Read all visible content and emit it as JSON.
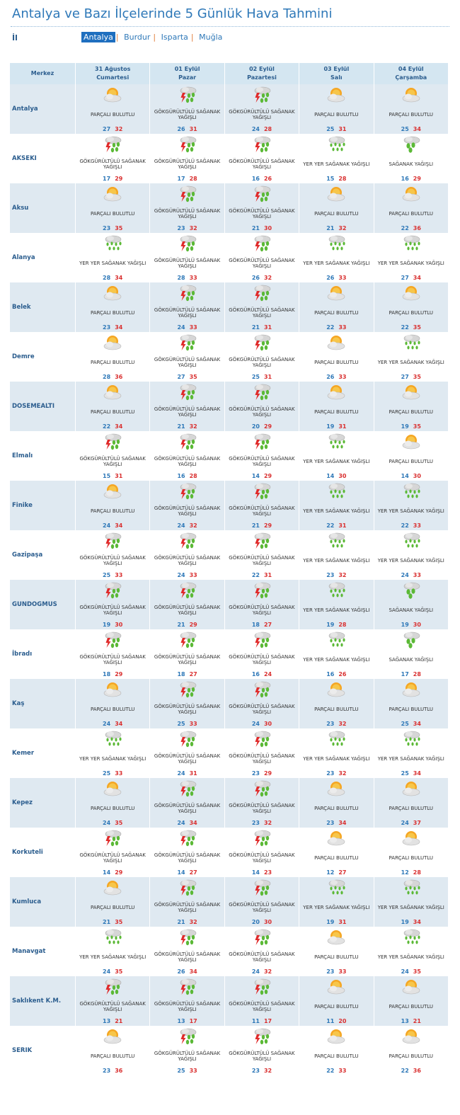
{
  "page": {
    "title": "Antalya ve Bazı İlçelerinde 5 Günlük Hava Tahmini",
    "il_label": "İl",
    "provinces": [
      {
        "label": "Antalya",
        "active": true
      },
      {
        "label": "Burdur",
        "active": false
      },
      {
        "label": "Isparta",
        "active": false
      },
      {
        "label": "Muğla",
        "active": false
      }
    ]
  },
  "table": {
    "merkez_header": "Merkez",
    "days": [
      {
        "date": "31 Ağustos",
        "weekday": "Cumartesi"
      },
      {
        "date": "01 Eylül",
        "weekday": "Pazar"
      },
      {
        "date": "02 Eylül",
        "weekday": "Pazartesi"
      },
      {
        "date": "03 Eylül",
        "weekday": "Salı"
      },
      {
        "date": "04 Eylül",
        "weekday": "Çarşamba"
      }
    ],
    "conditions": {
      "PB": {
        "text": "PARÇALI BULUTLU",
        "icon": "partly-cloudy-icon"
      },
      "GS": {
        "text": "GÖKGÜRÜLTÜLÜ SAĞANAK YAĞIŞLI",
        "icon": "thunder-shower-icon"
      },
      "YS": {
        "text": "YER YER SAĞANAK YAĞIŞLI",
        "icon": "scattered-shower-icon"
      },
      "SY": {
        "text": "SAĞANAK YAĞIŞLI",
        "icon": "shower-icon"
      }
    },
    "rows": [
      {
        "name": "Antalya",
        "days": [
          {
            "c": "PB",
            "lo": "27",
            "hi": "32"
          },
          {
            "c": "GS",
            "lo": "26",
            "hi": "31"
          },
          {
            "c": "GS",
            "lo": "24",
            "hi": "28"
          },
          {
            "c": "PB",
            "lo": "25",
            "hi": "31"
          },
          {
            "c": "PB",
            "lo": "25",
            "hi": "34"
          }
        ]
      },
      {
        "name": "AKSEKI",
        "days": [
          {
            "c": "GS",
            "lo": "17",
            "hi": "29"
          },
          {
            "c": "GS",
            "lo": "17",
            "hi": "28"
          },
          {
            "c": "GS",
            "lo": "16",
            "hi": "26"
          },
          {
            "c": "YS",
            "lo": "15",
            "hi": "28"
          },
          {
            "c": "SY",
            "lo": "16",
            "hi": "29"
          }
        ]
      },
      {
        "name": "Aksu",
        "days": [
          {
            "c": "PB",
            "lo": "23",
            "hi": "35"
          },
          {
            "c": "GS",
            "lo": "23",
            "hi": "32"
          },
          {
            "c": "GS",
            "lo": "21",
            "hi": "30"
          },
          {
            "c": "PB",
            "lo": "21",
            "hi": "32"
          },
          {
            "c": "PB",
            "lo": "22",
            "hi": "36"
          }
        ]
      },
      {
        "name": "Alanya",
        "days": [
          {
            "c": "YS",
            "lo": "28",
            "hi": "34"
          },
          {
            "c": "GS",
            "lo": "28",
            "hi": "33"
          },
          {
            "c": "GS",
            "lo": "26",
            "hi": "32"
          },
          {
            "c": "YS",
            "lo": "26",
            "hi": "33"
          },
          {
            "c": "YS",
            "lo": "27",
            "hi": "34"
          }
        ]
      },
      {
        "name": "Belek",
        "days": [
          {
            "c": "PB",
            "lo": "23",
            "hi": "34"
          },
          {
            "c": "GS",
            "lo": "24",
            "hi": "33"
          },
          {
            "c": "GS",
            "lo": "21",
            "hi": "31"
          },
          {
            "c": "PB",
            "lo": "22",
            "hi": "33"
          },
          {
            "c": "PB",
            "lo": "22",
            "hi": "35"
          }
        ]
      },
      {
        "name": "Demre",
        "days": [
          {
            "c": "PB",
            "lo": "28",
            "hi": "36"
          },
          {
            "c": "GS",
            "lo": "27",
            "hi": "35"
          },
          {
            "c": "GS",
            "lo": "25",
            "hi": "31"
          },
          {
            "c": "PB",
            "lo": "26",
            "hi": "33"
          },
          {
            "c": "YS",
            "lo": "27",
            "hi": "35"
          }
        ]
      },
      {
        "name": "DOSEMEALTI",
        "days": [
          {
            "c": "PB",
            "lo": "22",
            "hi": "34"
          },
          {
            "c": "GS",
            "lo": "21",
            "hi": "32"
          },
          {
            "c": "GS",
            "lo": "20",
            "hi": "29"
          },
          {
            "c": "PB",
            "lo": "19",
            "hi": "31"
          },
          {
            "c": "PB",
            "lo": "19",
            "hi": "35"
          }
        ]
      },
      {
        "name": "Elmalı",
        "days": [
          {
            "c": "GS",
            "lo": "15",
            "hi": "31"
          },
          {
            "c": "GS",
            "lo": "16",
            "hi": "28"
          },
          {
            "c": "GS",
            "lo": "14",
            "hi": "29"
          },
          {
            "c": "YS",
            "lo": "14",
            "hi": "30"
          },
          {
            "c": "PB",
            "lo": "14",
            "hi": "30"
          }
        ]
      },
      {
        "name": "Finike",
        "days": [
          {
            "c": "PB",
            "lo": "24",
            "hi": "34"
          },
          {
            "c": "GS",
            "lo": "24",
            "hi": "32"
          },
          {
            "c": "GS",
            "lo": "21",
            "hi": "29"
          },
          {
            "c": "YS",
            "lo": "22",
            "hi": "31"
          },
          {
            "c": "YS",
            "lo": "22",
            "hi": "33"
          }
        ]
      },
      {
        "name": "Gazipaşa",
        "days": [
          {
            "c": "GS",
            "lo": "25",
            "hi": "33"
          },
          {
            "c": "GS",
            "lo": "24",
            "hi": "33"
          },
          {
            "c": "GS",
            "lo": "22",
            "hi": "31"
          },
          {
            "c": "YS",
            "lo": "23",
            "hi": "32"
          },
          {
            "c": "YS",
            "lo": "24",
            "hi": "33"
          }
        ]
      },
      {
        "name": "GUNDOGMUS",
        "days": [
          {
            "c": "GS",
            "lo": "19",
            "hi": "30"
          },
          {
            "c": "GS",
            "lo": "21",
            "hi": "29"
          },
          {
            "c": "GS",
            "lo": "18",
            "hi": "27"
          },
          {
            "c": "YS",
            "lo": "19",
            "hi": "28"
          },
          {
            "c": "SY",
            "lo": "19",
            "hi": "30"
          }
        ]
      },
      {
        "name": "İbradı",
        "days": [
          {
            "c": "GS",
            "lo": "18",
            "hi": "29"
          },
          {
            "c": "GS",
            "lo": "18",
            "hi": "27"
          },
          {
            "c": "GS",
            "lo": "16",
            "hi": "24"
          },
          {
            "c": "YS",
            "lo": "16",
            "hi": "26"
          },
          {
            "c": "SY",
            "lo": "17",
            "hi": "28"
          }
        ]
      },
      {
        "name": "Kaş",
        "days": [
          {
            "c": "PB",
            "lo": "24",
            "hi": "34"
          },
          {
            "c": "GS",
            "lo": "25",
            "hi": "33"
          },
          {
            "c": "GS",
            "lo": "24",
            "hi": "30"
          },
          {
            "c": "PB",
            "lo": "23",
            "hi": "32"
          },
          {
            "c": "PB",
            "lo": "25",
            "hi": "34"
          }
        ]
      },
      {
        "name": "Kemer",
        "days": [
          {
            "c": "YS",
            "lo": "25",
            "hi": "33"
          },
          {
            "c": "GS",
            "lo": "24",
            "hi": "31"
          },
          {
            "c": "GS",
            "lo": "23",
            "hi": "29"
          },
          {
            "c": "YS",
            "lo": "23",
            "hi": "32"
          },
          {
            "c": "YS",
            "lo": "25",
            "hi": "34"
          }
        ]
      },
      {
        "name": "Kepez",
        "days": [
          {
            "c": "PB",
            "lo": "24",
            "hi": "35"
          },
          {
            "c": "GS",
            "lo": "24",
            "hi": "34"
          },
          {
            "c": "GS",
            "lo": "23",
            "hi": "32"
          },
          {
            "c": "PB",
            "lo": "23",
            "hi": "34"
          },
          {
            "c": "PB",
            "lo": "24",
            "hi": "37"
          }
        ]
      },
      {
        "name": "Korkuteli",
        "days": [
          {
            "c": "GS",
            "lo": "14",
            "hi": "29"
          },
          {
            "c": "GS",
            "lo": "14",
            "hi": "27"
          },
          {
            "c": "GS",
            "lo": "14",
            "hi": "23"
          },
          {
            "c": "PB",
            "lo": "12",
            "hi": "27"
          },
          {
            "c": "PB",
            "lo": "12",
            "hi": "28"
          }
        ]
      },
      {
        "name": "Kumluca",
        "days": [
          {
            "c": "PB",
            "lo": "21",
            "hi": "35"
          },
          {
            "c": "GS",
            "lo": "21",
            "hi": "32"
          },
          {
            "c": "GS",
            "lo": "20",
            "hi": "30"
          },
          {
            "c": "YS",
            "lo": "19",
            "hi": "31"
          },
          {
            "c": "YS",
            "lo": "19",
            "hi": "34"
          }
        ]
      },
      {
        "name": "Manavgat",
        "days": [
          {
            "c": "YS",
            "lo": "24",
            "hi": "35"
          },
          {
            "c": "GS",
            "lo": "26",
            "hi": "34"
          },
          {
            "c": "GS",
            "lo": "24",
            "hi": "32"
          },
          {
            "c": "PB",
            "lo": "23",
            "hi": "33"
          },
          {
            "c": "YS",
            "lo": "24",
            "hi": "35"
          }
        ]
      },
      {
        "name": "Saklıkent K.M.",
        "days": [
          {
            "c": "GS",
            "lo": "13",
            "hi": "21"
          },
          {
            "c": "GS",
            "lo": "13",
            "hi": "17"
          },
          {
            "c": "GS",
            "lo": "11",
            "hi": "17"
          },
          {
            "c": "PB",
            "lo": "11",
            "hi": "20"
          },
          {
            "c": "PB",
            "lo": "13",
            "hi": "21"
          }
        ]
      },
      {
        "name": "SERIK",
        "days": [
          {
            "c": "PB",
            "lo": "23",
            "hi": "36"
          },
          {
            "c": "GS",
            "lo": "25",
            "hi": "33"
          },
          {
            "c": "GS",
            "lo": "23",
            "hi": "32"
          },
          {
            "c": "PB",
            "lo": "22",
            "hi": "33"
          },
          {
            "c": "PB",
            "lo": "22",
            "hi": "36"
          }
        ]
      }
    ]
  }
}
